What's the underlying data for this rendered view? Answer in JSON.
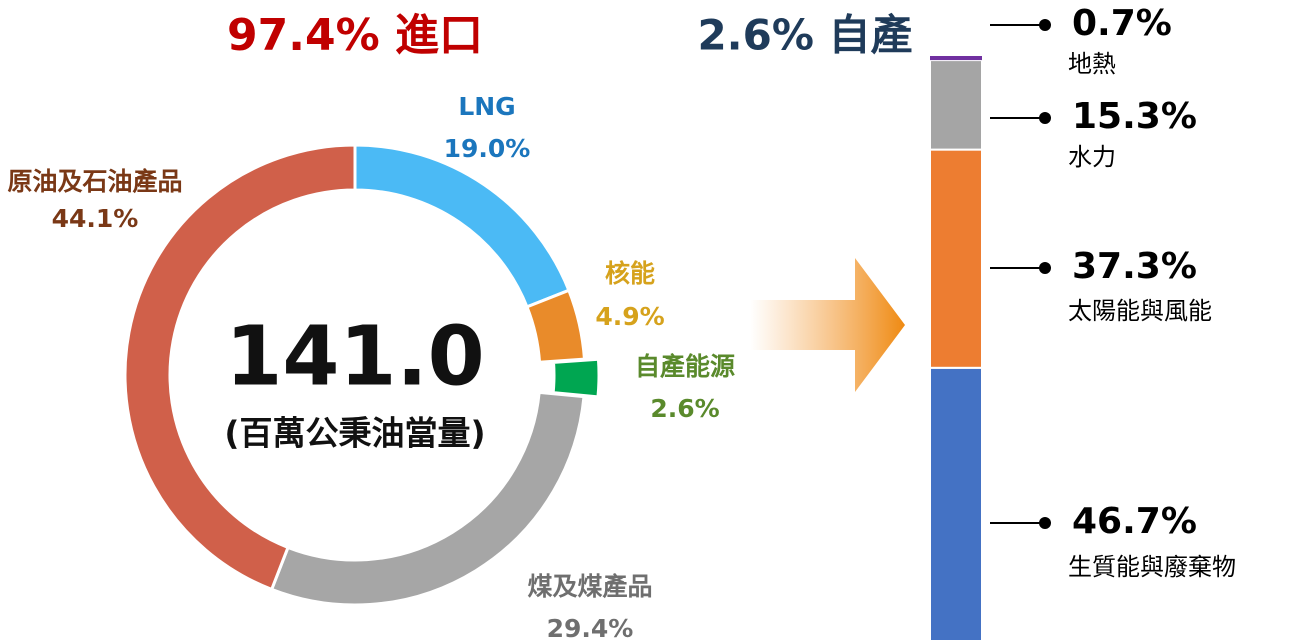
{
  "chart_data": [
    {
      "type": "donut",
      "annotations": [
        "97.4% 進口",
        "141.0",
        "(百萬公秉油當量)"
      ],
      "categories": [
        "LNG",
        "核能",
        "自產能源",
        "煤及煤產品",
        "原油及石油產品"
      ],
      "values": [
        19.0,
        4.9,
        2.6,
        29.4,
        44.1
      ],
      "value_labels": [
        "19.0%",
        "4.9%",
        "2.6%",
        "29.4%",
        "44.1%"
      ],
      "colors": [
        "#4bbaf5",
        "#e98b2a",
        "#00a651",
        "#a6a6a6",
        "#d0604a"
      ],
      "label_colors": [
        "#1b76bd",
        "#d6a21c",
        "#5a8a2c",
        "#6f6f6f",
        "#7a3816"
      ],
      "exploded": [
        2
      ]
    },
    {
      "type": "stacked_bar",
      "annotations": [
        "2.6% 自產"
      ],
      "categories": [
        "生質能與廢棄物",
        "太陽能與風能",
        "水力",
        "地熱"
      ],
      "values": [
        46.7,
        37.3,
        15.3,
        0.7
      ],
      "value_labels": [
        "46.7%",
        "37.3%",
        "15.3%",
        "0.7%"
      ],
      "colors": [
        "#4472c4",
        "#ed7d31",
        "#a5a5a5",
        "#7030a0"
      ]
    }
  ]
}
